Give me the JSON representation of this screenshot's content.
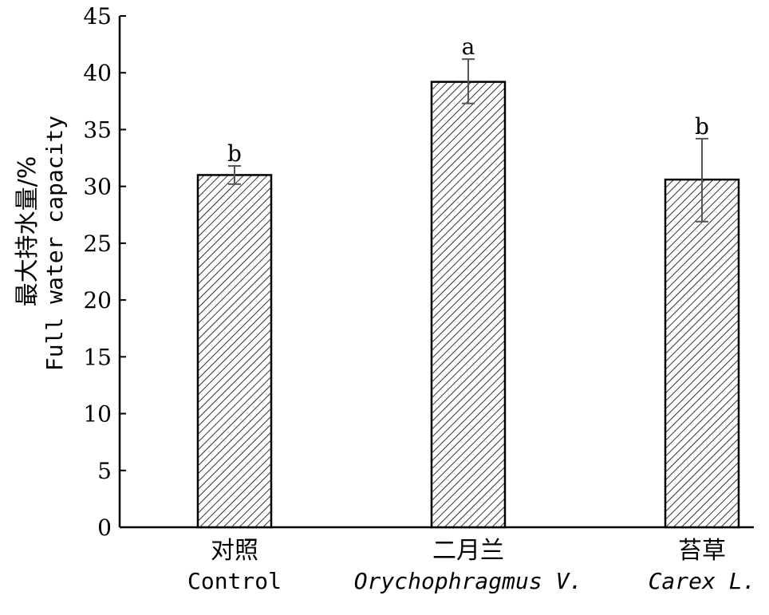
{
  "chart_data": {
    "type": "bar",
    "ylabel_cn": "最大持水量/%",
    "ylabel_en": "Full water capacity",
    "ylim": [
      0,
      45
    ],
    "yticks": [
      0,
      5,
      10,
      15,
      20,
      25,
      30,
      35,
      40,
      45
    ],
    "categories": [
      {
        "cn": "对照",
        "en": "Control",
        "italic": false
      },
      {
        "cn": "二月兰",
        "en": "Orychophragmus V.",
        "italic": true
      },
      {
        "cn": "苔草",
        "en": "Carex L.",
        "italic": true
      }
    ],
    "values": [
      31.0,
      39.2,
      30.6
    ],
    "error_low": [
      30.2,
      37.3,
      26.9
    ],
    "error_high": [
      31.8,
      41.2,
      34.2
    ],
    "significance": [
      "b",
      "a",
      "b"
    ],
    "bar_fill": "hatched",
    "colors": {
      "bar_edge": "#000000",
      "hatch": "#000000",
      "error_bar": "#555555"
    }
  }
}
